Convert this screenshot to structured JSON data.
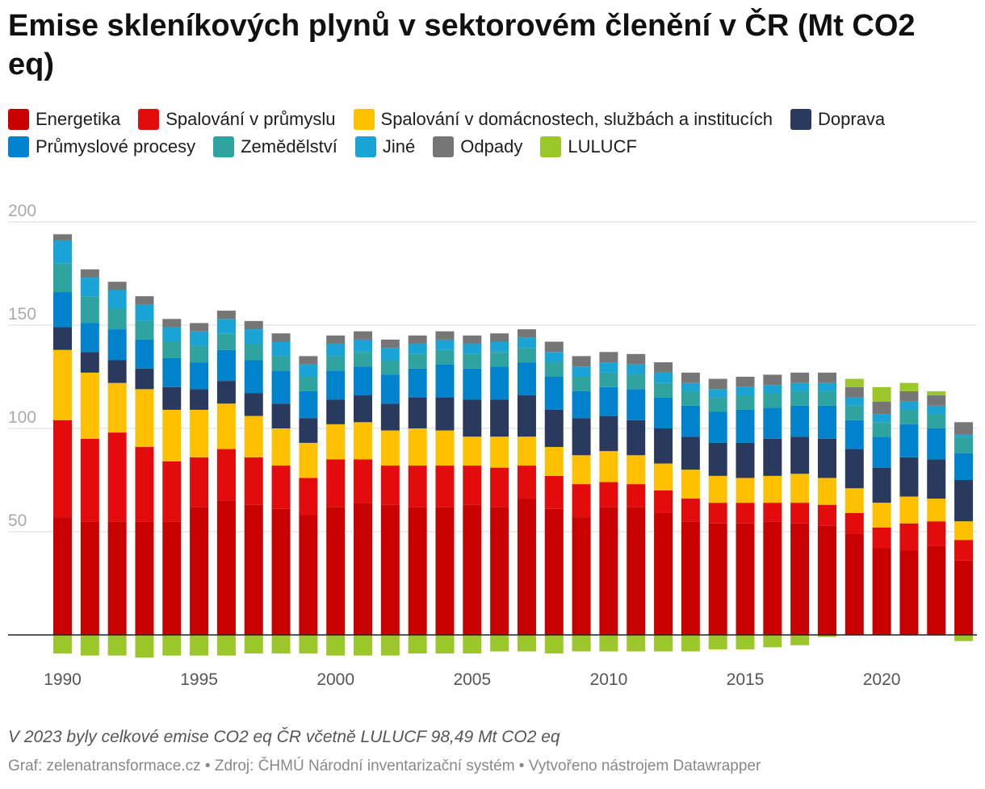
{
  "title": "Emise skleníkových plynů v sektorovém členění v ČR (Mt CO2 eq)",
  "note": "V 2023 byly celkové emise CO2 eq ČR včetně LULUCF 98,49 Mt CO2 eq",
  "source": "Graf: zelenatransformace.cz • Zdroj: ČHMÚ Národní inventarizační systém • Vytvořeno nástrojem Datawrapper",
  "chart_data": {
    "type": "bar",
    "stacked": true,
    "title": "Emise skleníkových plynů v sektorovém členění v ČR (Mt CO2 eq)",
    "xlabel": "",
    "ylabel": "",
    "ylim": [
      -12,
      205
    ],
    "y_ticks": [
      200,
      150,
      100,
      50
    ],
    "x_tick_labels": [
      "1990",
      "1995",
      "2000",
      "2005",
      "2010",
      "2015",
      "2020"
    ],
    "grid": true,
    "legend_position": "top",
    "categories": [
      "1990",
      "1991",
      "1992",
      "1993",
      "1994",
      "1995",
      "1996",
      "1997",
      "1998",
      "1999",
      "2000",
      "2001",
      "2002",
      "2003",
      "2004",
      "2005",
      "2006",
      "2007",
      "2008",
      "2009",
      "2010",
      "2011",
      "2012",
      "2013",
      "2014",
      "2015",
      "2016",
      "2017",
      "2018",
      "2019",
      "2020",
      "2021",
      "2022",
      "2023"
    ],
    "series": [
      {
        "name": "Energetika",
        "color": "#c90000",
        "values": [
          57,
          55,
          55,
          55,
          55,
          62,
          65,
          63,
          61,
          58,
          62,
          64,
          63,
          62,
          62,
          63,
          62,
          66,
          61,
          57,
          62,
          62,
          59,
          55,
          54,
          54,
          55,
          54,
          53,
          49,
          42,
          41,
          43,
          36
        ]
      },
      {
        "name": "Spalování v průmyslu",
        "color": "#e30b0b",
        "values": [
          47,
          40,
          43,
          36,
          29,
          24,
          25,
          23,
          21,
          18,
          23,
          21,
          19,
          20,
          20,
          19,
          19,
          16,
          16,
          16,
          12,
          11,
          11,
          11,
          10,
          10,
          9,
          10,
          10,
          10,
          10,
          13,
          12,
          10
        ]
      },
      {
        "name": "Spalování v domácnostech, službách a institucích",
        "color": "#ffc000",
        "values": [
          34,
          32,
          24,
          28,
          25,
          23,
          22,
          20,
          18,
          17,
          17,
          18,
          17,
          18,
          17,
          14,
          15,
          14,
          14,
          14,
          15,
          14,
          13,
          14,
          13,
          12,
          13,
          14,
          13,
          12,
          12,
          13,
          11,
          9
        ]
      },
      {
        "name": "Doprava",
        "color": "#2a3a5e",
        "values": [
          11,
          10,
          11,
          10,
          11,
          10,
          11,
          11,
          12,
          12,
          12,
          13,
          13,
          15,
          16,
          18,
          18,
          20,
          18,
          18,
          17,
          17,
          17,
          16,
          16,
          17,
          18,
          18,
          19,
          19,
          17,
          19,
          19,
          20
        ]
      },
      {
        "name": "Průmyslové procesy",
        "color": "#0083cc",
        "values": [
          17,
          14,
          15,
          14,
          14,
          13,
          15,
          16,
          16,
          13,
          14,
          14,
          14,
          14,
          16,
          15,
          16,
          16,
          16,
          13,
          14,
          15,
          15,
          15,
          15,
          16,
          15,
          15,
          16,
          14,
          15,
          16,
          15,
          13
        ]
      },
      {
        "name": "Zemědělství",
        "color": "#2fa3a0",
        "values": [
          14,
          13,
          10,
          9,
          8,
          8,
          8,
          8,
          7,
          7,
          7,
          7,
          7,
          7,
          7,
          7,
          7,
          7,
          7,
          7,
          7,
          7,
          7,
          7,
          7,
          7,
          7,
          7,
          7,
          7,
          7,
          7,
          7,
          8
        ]
      },
      {
        "name": "Jiné",
        "color": "#1aa3d5",
        "values": [
          11,
          9,
          9,
          8,
          7,
          7,
          7,
          7,
          7,
          6,
          6,
          6,
          6,
          5,
          5,
          5,
          5,
          5,
          5,
          5,
          5,
          5,
          5,
          4,
          4,
          4,
          4,
          4,
          4,
          4,
          4,
          4,
          4,
          1
        ]
      },
      {
        "name": "Odpady",
        "color": "#767676",
        "values": [
          3,
          4,
          4,
          4,
          4,
          4,
          4,
          4,
          4,
          4,
          4,
          4,
          4,
          4,
          4,
          4,
          4,
          4,
          5,
          5,
          5,
          5,
          5,
          5,
          5,
          5,
          5,
          5,
          5,
          5,
          6,
          5,
          5,
          6
        ]
      },
      {
        "name": "LULUCF",
        "color": "#9cc72a",
        "values": [
          -9,
          -10,
          -10,
          -11,
          -10,
          -10,
          -10,
          -9,
          -9,
          -9,
          -10,
          -10,
          -10,
          -9,
          -9,
          -9,
          -8,
          -8,
          -9,
          -8,
          -8,
          -8,
          -8,
          -8,
          -7,
          -7,
          -6,
          -5,
          -1,
          4,
          7,
          4,
          2,
          -3
        ]
      }
    ]
  }
}
